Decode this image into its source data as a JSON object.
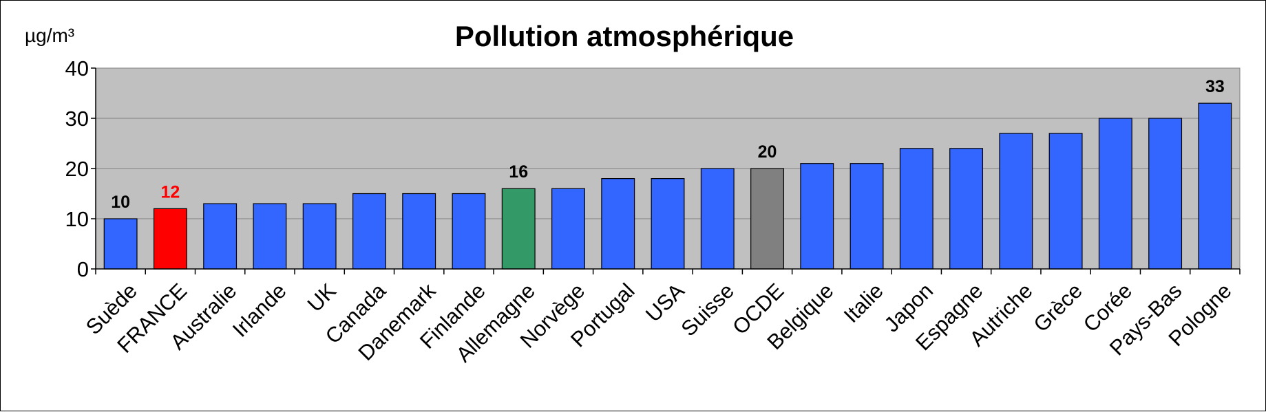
{
  "chart_data": {
    "type": "bar",
    "title": "Pollution atmosphérique",
    "ylabel": "µg/m³",
    "xlabel": "",
    "ylim": [
      0,
      40
    ],
    "yticks": [
      "0",
      "10",
      "20",
      "30",
      "40"
    ],
    "grid": true,
    "legend": "none",
    "categories": [
      "Suède",
      "FRANCE",
      "Australie",
      "Irlande",
      "UK",
      "Canada",
      "Danemark",
      "Finlande",
      "Allemagne",
      "Norvège",
      "Portugal",
      "USA",
      "Suisse",
      "OCDE",
      "Belgique",
      "Italie",
      "Japon",
      "Espagne",
      "Autriche",
      "Grèce",
      "Corée",
      "Pays-Bas",
      "Pologne"
    ],
    "values": [
      10,
      12,
      13,
      13,
      13,
      15,
      15,
      15,
      16,
      16,
      18,
      18,
      20,
      20,
      21,
      21,
      24,
      24,
      27,
      27,
      30,
      30,
      33
    ],
    "bar_colors": [
      "#3366FF",
      "#FF0000",
      "#3366FF",
      "#3366FF",
      "#3366FF",
      "#3366FF",
      "#3366FF",
      "#3366FF",
      "#339966",
      "#3366FF",
      "#3366FF",
      "#3366FF",
      "#3366FF",
      "#808080",
      "#3366FF",
      "#3366FF",
      "#3366FF",
      "#3366FF",
      "#3366FF",
      "#3366FF",
      "#3366FF",
      "#3366FF",
      "#3366FF"
    ],
    "data_labels": [
      {
        "category": "Suède",
        "text": "10",
        "color": "#000000"
      },
      {
        "category": "FRANCE",
        "text": "12",
        "color": "#FF0000"
      },
      {
        "category": "Allemagne",
        "text": "16",
        "color": "#000000"
      },
      {
        "category": "OCDE",
        "text": "20",
        "color": "#000000"
      },
      {
        "category": "Pologne",
        "text": "33",
        "color": "#000000"
      }
    ],
    "plot_background": "#C0C0C0",
    "gridline_color": "#808080"
  }
}
